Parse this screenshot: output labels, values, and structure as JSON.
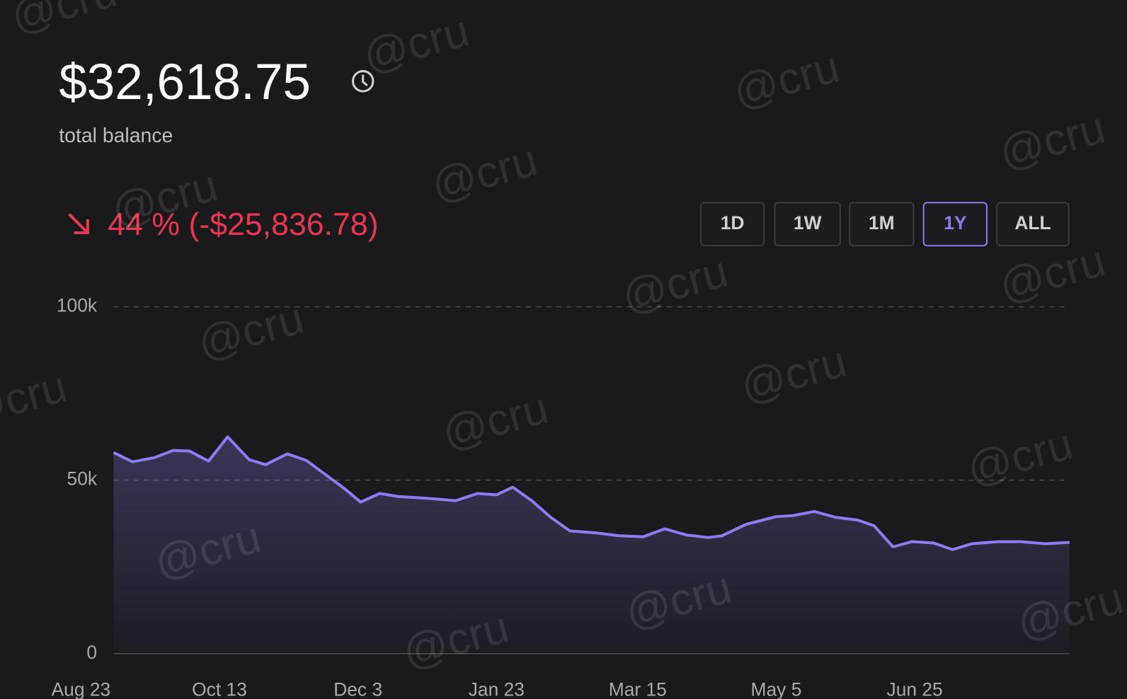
{
  "header": {
    "balance": "$32,618.75",
    "balance_label": "total balance",
    "change": "44 % (-$25,836.78)"
  },
  "buttons": [
    "1D",
    "1W",
    "1M",
    "1Y",
    "ALL"
  ],
  "active_button": 3,
  "watermark": "@cru",
  "chart_data": {
    "type": "area",
    "color": "#8b7cf0",
    "x": [
      12,
      19,
      27,
      34,
      40,
      47,
      54,
      62,
      68,
      76,
      83,
      92,
      97,
      103,
      110,
      117,
      129,
      138,
      146,
      153,
      159,
      166,
      173,
      180,
      190,
      198,
      207,
      215,
      223,
      231,
      236,
      245,
      256,
      262,
      270,
      278,
      286,
      292,
      299,
      306,
      314,
      321,
      328,
      338,
      346,
      355,
      364
    ],
    "values": [
      58000,
      55300,
      56500,
      58600,
      58400,
      55500,
      62500,
      55900,
      54500,
      57600,
      55700,
      50500,
      47600,
      43700,
      46200,
      45300,
      44700,
      44100,
      46200,
      45800,
      48000,
      44100,
      39300,
      35400,
      34800,
      34000,
      33700,
      36000,
      34200,
      33500,
      34000,
      37300,
      39500,
      39800,
      41000,
      39300,
      38500,
      36900,
      30800,
      32300,
      31900,
      30000,
      31700,
      32300,
      32300,
      31700,
      32100
    ],
    "xlim": [
      12,
      364
    ],
    "xticks": [
      {
        "value": 0,
        "label": "Aug 23"
      },
      {
        "value": 51,
        "label": "Oct 13"
      },
      {
        "value": 102,
        "label": "Dec 3"
      },
      {
        "value": 153,
        "label": "Jan 23"
      },
      {
        "value": 205,
        "label": "Mar 15"
      },
      {
        "value": 256,
        "label": "May 5"
      },
      {
        "value": 307,
        "label": "Jun 25"
      }
    ],
    "ylim": [
      0,
      100000
    ],
    "yticks": [
      0,
      {
        "value": 50000,
        "label": "50k"
      },
      {
        "value": 100000,
        "label": "100k"
      }
    ],
    "grid": true
  }
}
